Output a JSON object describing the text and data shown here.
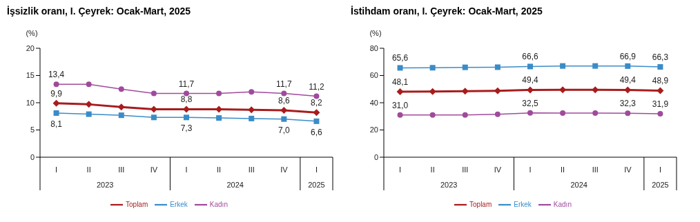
{
  "chart_data": [
    {
      "type": "line",
      "title": "İşsizlik oranı, I. Çeyrek: Ocak-Mart, 2025",
      "ylabel": "(%)",
      "categories": [
        "I",
        "II",
        "III",
        "IV",
        "I",
        "II",
        "III",
        "IV",
        "I"
      ],
      "annotations": [
        "2023",
        "2024",
        "2025"
      ],
      "ylim": [
        0,
        20
      ],
      "yticks": [
        0,
        5,
        10,
        15,
        20
      ],
      "grid": false,
      "legend": "bottom",
      "series": [
        {
          "name": "Toplam",
          "color": "#a81c1c",
          "marker": "diamond",
          "values": [
            9.9,
            9.7,
            9.2,
            8.8,
            8.8,
            8.8,
            8.7,
            8.6,
            8.2
          ],
          "value_labels": [
            "9,9",
            null,
            null,
            null,
            "8,8",
            null,
            null,
            "8,6",
            "8,2"
          ]
        },
        {
          "name": "Erkek",
          "color": "#3a8cc8",
          "marker": "square",
          "values": [
            8.1,
            7.9,
            7.7,
            7.3,
            7.3,
            7.2,
            7.1,
            7.0,
            6.6
          ],
          "value_labels": [
            "8,1",
            null,
            null,
            null,
            "7,3",
            null,
            null,
            "7,0",
            "6,6"
          ]
        },
        {
          "name": "Kadın",
          "color": "#a04a9c",
          "marker": "circle",
          "values": [
            13.4,
            13.4,
            12.5,
            11.7,
            11.7,
            11.7,
            12.0,
            11.7,
            11.2
          ],
          "value_labels": [
            "13,4",
            null,
            null,
            null,
            "11,7",
            null,
            null,
            "11,7",
            "11,2"
          ]
        }
      ]
    },
    {
      "type": "line",
      "title": "İstihdam oranı, I. Çeyrek: Ocak-Mart, 2025",
      "ylabel": "(%)",
      "categories": [
        "I",
        "II",
        "III",
        "IV",
        "I",
        "II",
        "III",
        "IV",
        "I"
      ],
      "annotations": [
        "2023",
        "2024",
        "2025"
      ],
      "ylim": [
        0,
        80
      ],
      "yticks": [
        0,
        20,
        40,
        60,
        80
      ],
      "grid": false,
      "legend": "bottom",
      "series": [
        {
          "name": "Toplam",
          "color": "#a81c1c",
          "marker": "diamond",
          "values": [
            48.1,
            48.2,
            48.5,
            48.7,
            49.4,
            49.5,
            49.5,
            49.4,
            48.9
          ],
          "value_labels": [
            "48,1",
            null,
            null,
            null,
            "49,4",
            null,
            null,
            "49,4",
            "48,9"
          ]
        },
        {
          "name": "Erkek",
          "color": "#3a8cc8",
          "marker": "square",
          "values": [
            65.6,
            65.7,
            66.0,
            66.1,
            66.6,
            67.0,
            67.0,
            66.9,
            66.3
          ],
          "value_labels": [
            "65,6",
            null,
            null,
            null,
            "66,6",
            null,
            null,
            "66,9",
            "66,3"
          ]
        },
        {
          "name": "Kadın",
          "color": "#a04a9c",
          "marker": "circle",
          "values": [
            31.0,
            31.0,
            31.0,
            31.5,
            32.5,
            32.4,
            32.4,
            32.3,
            31.9
          ],
          "value_labels": [
            "31,0",
            null,
            null,
            null,
            "32,5",
            null,
            null,
            "32,3",
            "31,9"
          ]
        }
      ]
    }
  ]
}
